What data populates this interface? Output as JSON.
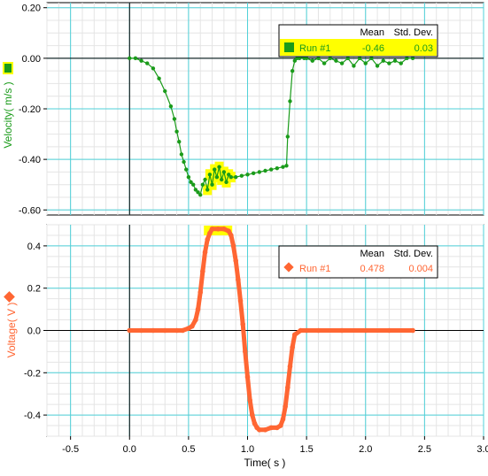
{
  "chart_data": [
    {
      "type": "line",
      "ylabel": "Velocity( m/s )",
      "ylim": [
        -0.62,
        0.22
      ],
      "yticks": [
        "0.20",
        "0.00",
        "-0.20",
        "-0.40",
        "-0.60"
      ],
      "ytick_values": [
        0.2,
        0.0,
        -0.2,
        -0.4,
        -0.6
      ],
      "xlim": [
        -0.7,
        3.0
      ],
      "color": "#1a9b1a",
      "selection_color": "#ffff00",
      "grid": true,
      "series": [
        {
          "name": "Run #1",
          "x": [
            0.0,
            0.05,
            0.1,
            0.15,
            0.2,
            0.25,
            0.3,
            0.35,
            0.38,
            0.4,
            0.42,
            0.44,
            0.46,
            0.48,
            0.5,
            0.52,
            0.54,
            0.56,
            0.58,
            0.6,
            0.62,
            0.64,
            0.66,
            0.68,
            0.7,
            0.72,
            0.74,
            0.76,
            0.78,
            0.8,
            0.82,
            0.84,
            0.86,
            0.9,
            0.95,
            1.0,
            1.05,
            1.1,
            1.15,
            1.2,
            1.25,
            1.3,
            1.33,
            1.34,
            1.36,
            1.38,
            1.4,
            1.42,
            1.44,
            1.46,
            1.48,
            1.5,
            1.55,
            1.6,
            1.65,
            1.7,
            1.75,
            1.8,
            1.85,
            1.9,
            1.95,
            2.0,
            2.05,
            2.1,
            2.15,
            2.2,
            2.25,
            2.3,
            2.35,
            2.4
          ],
          "y": [
            0.0,
            0.0,
            -0.01,
            -0.02,
            -0.04,
            -0.08,
            -0.13,
            -0.19,
            -0.24,
            -0.29,
            -0.33,
            -0.38,
            -0.41,
            -0.44,
            -0.47,
            -0.49,
            -0.5,
            -0.52,
            -0.53,
            -0.54,
            -0.5,
            -0.48,
            -0.52,
            -0.46,
            -0.5,
            -0.44,
            -0.47,
            -0.43,
            -0.48,
            -0.45,
            -0.49,
            -0.46,
            -0.47,
            -0.47,
            -0.465,
            -0.46,
            -0.455,
            -0.45,
            -0.445,
            -0.44,
            -0.435,
            -0.43,
            -0.425,
            -0.31,
            -0.17,
            -0.05,
            -0.01,
            0.0,
            0.0,
            0.01,
            0.0,
            0.0,
            -0.01,
            0.0,
            -0.02,
            0.0,
            -0.01,
            -0.02,
            0.0,
            -0.03,
            0.0,
            -0.02,
            0.0,
            -0.03,
            -0.01,
            -0.02,
            -0.01,
            -0.02,
            0.0,
            0.0
          ]
        }
      ],
      "legend": {
        "headers": [
          "Mean",
          "Std. Dev."
        ],
        "run": "Run #1",
        "mean": "-0.46",
        "std": "0.03",
        "placement": "top-right"
      }
    },
    {
      "type": "line",
      "ylabel": "Voltage( V )",
      "ylim": [
        -0.5,
        0.5
      ],
      "yticks": [
        "0.4",
        "0.2",
        "0.0",
        "-0.2",
        "-0.4"
      ],
      "ytick_values": [
        0.4,
        0.2,
        0.0,
        -0.2,
        -0.4
      ],
      "xlabel": "Time( s )",
      "xlim": [
        -0.7,
        3.0
      ],
      "xticks": [
        "-0.5",
        "0.0",
        "0.5",
        "1.0",
        "1.5",
        "2.0",
        "2.5",
        "3.0"
      ],
      "xtick_values": [
        -0.5,
        0.0,
        0.5,
        1.0,
        1.5,
        2.0,
        2.5,
        3.0
      ],
      "color": "#ff6633",
      "selection_color": "#ffff00",
      "grid": true,
      "series": [
        {
          "name": "Run #1",
          "x": [
            0.0,
            0.1,
            0.2,
            0.3,
            0.4,
            0.45,
            0.5,
            0.53,
            0.56,
            0.58,
            0.6,
            0.62,
            0.64,
            0.66,
            0.68,
            0.7,
            0.75,
            0.8,
            0.84,
            0.86,
            0.88,
            0.9,
            0.92,
            0.94,
            0.96,
            0.98,
            1.0,
            1.02,
            1.04,
            1.06,
            1.08,
            1.1,
            1.15,
            1.2,
            1.25,
            1.28,
            1.3,
            1.32,
            1.34,
            1.36,
            1.38,
            1.4,
            1.45,
            1.5,
            1.6,
            1.8,
            2.0,
            2.2,
            2.4
          ],
          "y": [
            0.0,
            0.0,
            0.0,
            0.0,
            0.0,
            0.0,
            0.01,
            0.02,
            0.05,
            0.1,
            0.18,
            0.28,
            0.37,
            0.43,
            0.46,
            0.48,
            0.48,
            0.48,
            0.47,
            0.45,
            0.4,
            0.33,
            0.24,
            0.14,
            0.03,
            -0.1,
            -0.22,
            -0.33,
            -0.4,
            -0.44,
            -0.46,
            -0.47,
            -0.47,
            -0.46,
            -0.46,
            -0.45,
            -0.42,
            -0.36,
            -0.27,
            -0.17,
            -0.08,
            -0.02,
            0.0,
            0.0,
            0.0,
            0.0,
            0.0,
            0.0,
            0.0
          ]
        }
      ],
      "legend": {
        "headers": [
          "Mean",
          "Std. Dev."
        ],
        "run": "Run #1",
        "mean": "0.478",
        "std": "0.004",
        "placement": "top-right"
      }
    }
  ]
}
